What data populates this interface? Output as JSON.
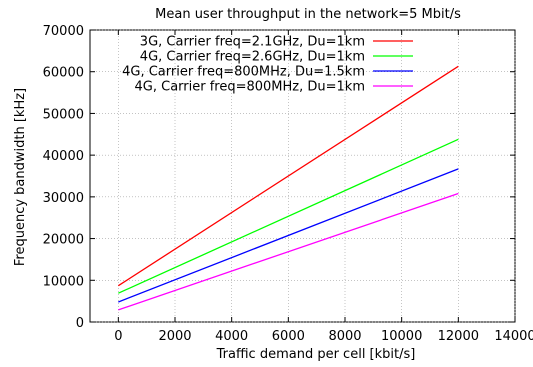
{
  "chart_data": {
    "type": "line",
    "title": "Mean user throughput in the network=5 Mbit/s",
    "xlabel": "Traffic demand per cell [kbit/s]",
    "ylabel": "Frequency bandwidth [kHz]",
    "xlim": [
      -1000,
      14000
    ],
    "ylim": [
      0,
      70000
    ],
    "xticks": [
      0,
      2000,
      4000,
      6000,
      8000,
      10000,
      12000,
      14000
    ],
    "yticks": [
      0,
      10000,
      20000,
      30000,
      40000,
      50000,
      60000,
      70000
    ],
    "grid": true,
    "legend_position": "top-left",
    "series": [
      {
        "name": "3G, Carrier freq=2.1GHz, Du=1km",
        "color": "#ff0000",
        "x": [
          0,
          12000
        ],
        "y": [
          8700,
          61300
        ]
      },
      {
        "name": "4G, Carrier freq=2.6GHz, Du=1km",
        "color": "#00ff00",
        "x": [
          0,
          12000
        ],
        "y": [
          6900,
          43800
        ]
      },
      {
        "name": "4G, Carrier freq=800MHz, Du=1.5km",
        "color": "#0000ff",
        "x": [
          0,
          12000
        ],
        "y": [
          4800,
          36700
        ]
      },
      {
        "name": "4G, Carrier freq=800MHz, Du=1km",
        "color": "#ff00ff",
        "x": [
          0,
          12000
        ],
        "y": [
          2900,
          30800
        ]
      }
    ]
  }
}
